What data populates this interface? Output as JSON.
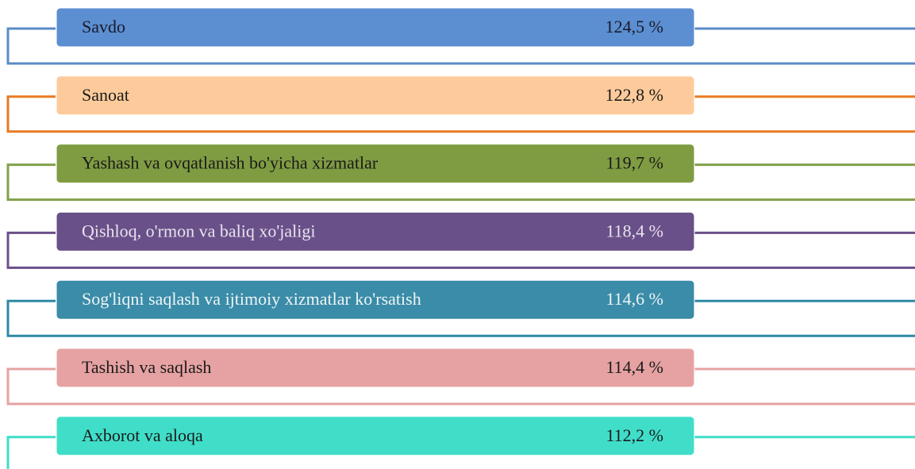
{
  "items": [
    {
      "label": "Savdo",
      "value": "124,5 %",
      "color": "#5b8fd1",
      "line_color": "#5b8bc8",
      "text_color": "#1a1a2a"
    },
    {
      "label": "Sanoat",
      "value": "122,8 %",
      "color": "#fdcb9b",
      "line_color": "#e87a22",
      "text_color": "#1a1a1a"
    },
    {
      "label": "Yashash va ovqatlanish bo'yicha xizmatlar",
      "value": "119,7 %",
      "color": "#7f9c42",
      "line_color": "#82a04a",
      "text_color": "#1a1a1a"
    },
    {
      "label": "Qishloq, o'rmon va baliq xo'jaligi",
      "value": "118,4 %",
      "color": "#6a5089",
      "line_color": "#6a5089",
      "text_color": "#e8e4ee"
    },
    {
      "label": "Sog'liqni saqlash va ijtimoiy xizmatlar ko'rsatish",
      "value": "114,6 %",
      "color": "#3a8ca8",
      "line_color": "#2e8aa5",
      "text_color": "#eef4f6"
    },
    {
      "label": "Tashish va saqlash",
      "value": "114,4 %",
      "color": "#e6a2a2",
      "line_color": "#e6a2a2",
      "text_color": "#1a1a1a"
    },
    {
      "label": "Axborot va aloqa",
      "value": "112,2 %",
      "color": "#40dec9",
      "line_color": "#3fdec8",
      "text_color": "#1a1a1a"
    }
  ]
}
